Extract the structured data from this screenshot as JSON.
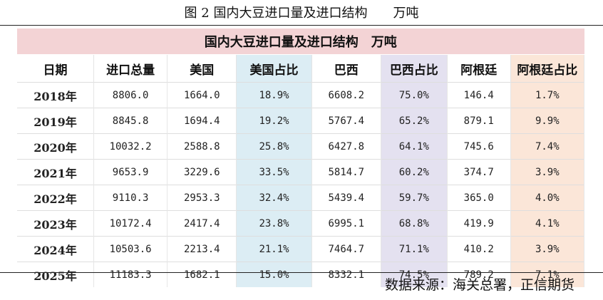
{
  "figure_title": "图 2 国内大豆进口量及进口结构　　万吨",
  "table": {
    "banner": "国内大豆进口量及进口结构　万吨",
    "headers": [
      "日期",
      "进口总量",
      "美国",
      "美国占比",
      "巴西",
      "巴西占比",
      "阿根廷",
      "阿根廷占比"
    ],
    "rows": [
      [
        "2018年",
        "8806.0",
        "1664.0",
        "18.9%",
        "6608.2",
        "75.0%",
        "146.4",
        "1.7%"
      ],
      [
        "2019年",
        "8845.8",
        "1694.4",
        "19.2%",
        "5767.4",
        "65.2%",
        "879.1",
        "9.9%"
      ],
      [
        "2020年",
        "10032.2",
        "2588.8",
        "25.8%",
        "6427.8",
        "64.1%",
        "745.6",
        "7.4%"
      ],
      [
        "2021年",
        "9653.9",
        "3229.6",
        "33.5%",
        "5814.7",
        "60.2%",
        "374.7",
        "3.9%"
      ],
      [
        "2022年",
        "9110.3",
        "2953.3",
        "32.4%",
        "5439.4",
        "59.7%",
        "365.0",
        "4.0%"
      ],
      [
        "2023年",
        "10172.4",
        "2417.4",
        "23.8%",
        "6995.1",
        "68.8%",
        "419.9",
        "4.1%"
      ],
      [
        "2024年",
        "10503.6",
        "2213.4",
        "21.1%",
        "7464.7",
        "71.1%",
        "410.2",
        "3.9%"
      ],
      [
        "2025年",
        "11183.3",
        "1682.1",
        "15.0%",
        "8332.1",
        "74.5%",
        "789.2",
        "7.1%"
      ]
    ]
  },
  "source": "数据来源：海关总署，正信期货",
  "colors": {
    "banner": "#f3d3d5",
    "us_share": "#dcedf4",
    "brazil_share": "#e4e1f0",
    "argentina_share": "#fbe6d8"
  }
}
